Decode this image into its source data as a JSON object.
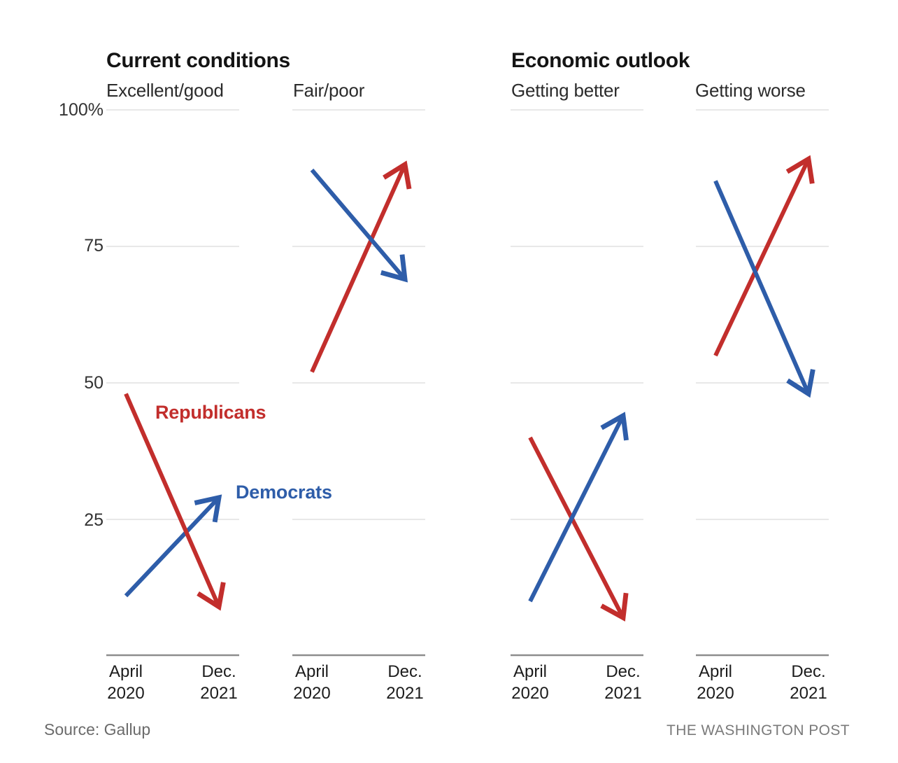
{
  "footer": {
    "source": "Source: Gallup",
    "credit": "THE WASHINGTON POST"
  },
  "chart_data": {
    "type": "line",
    "subtype": "slope-arrow",
    "unit": "%",
    "grid": "horizontal-only",
    "ylim": [
      0,
      100
    ],
    "colors": {
      "republicans": "#c22e2c",
      "democrats": "#2e5da9",
      "gridline": "#dadada",
      "axis": "#8d8d8d"
    },
    "legend": {
      "republicans": "Republicans",
      "democrats": "Democrats"
    },
    "y_ticks": [
      {
        "value": 100,
        "label": "100%"
      },
      {
        "value": 75,
        "label": "75"
      },
      {
        "value": 50,
        "label": "50"
      },
      {
        "value": 25,
        "label": "25"
      }
    ],
    "x_labels": [
      [
        "April",
        "2020"
      ],
      [
        "Dec.",
        "2021"
      ]
    ],
    "x_categories": [
      "April 2020",
      "Dec. 2021"
    ],
    "sections": [
      {
        "title": "Current conditions",
        "panels": [
          {
            "label": "Excellent/good",
            "series": [
              {
                "party": "democrats",
                "values": [
                  11,
                  29
                ]
              },
              {
                "party": "republicans",
                "values": [
                  48,
                  9
                ]
              }
            ]
          },
          {
            "label": "Fair/poor",
            "series": [
              {
                "party": "republicans",
                "values": [
                  52,
                  90
                ]
              },
              {
                "party": "democrats",
                "values": [
                  89,
                  69
                ]
              }
            ]
          }
        ]
      },
      {
        "title": "Economic outlook",
        "panels": [
          {
            "label": "Getting better",
            "series": [
              {
                "party": "republicans",
                "values": [
                  40,
                  7
                ]
              },
              {
                "party": "democrats",
                "values": [
                  10,
                  44
                ]
              }
            ]
          },
          {
            "label": "Getting worse",
            "series": [
              {
                "party": "republicans",
                "values": [
                  55,
                  91
                ]
              },
              {
                "party": "democrats",
                "values": [
                  87,
                  48
                ]
              }
            ]
          }
        ]
      }
    ]
  }
}
